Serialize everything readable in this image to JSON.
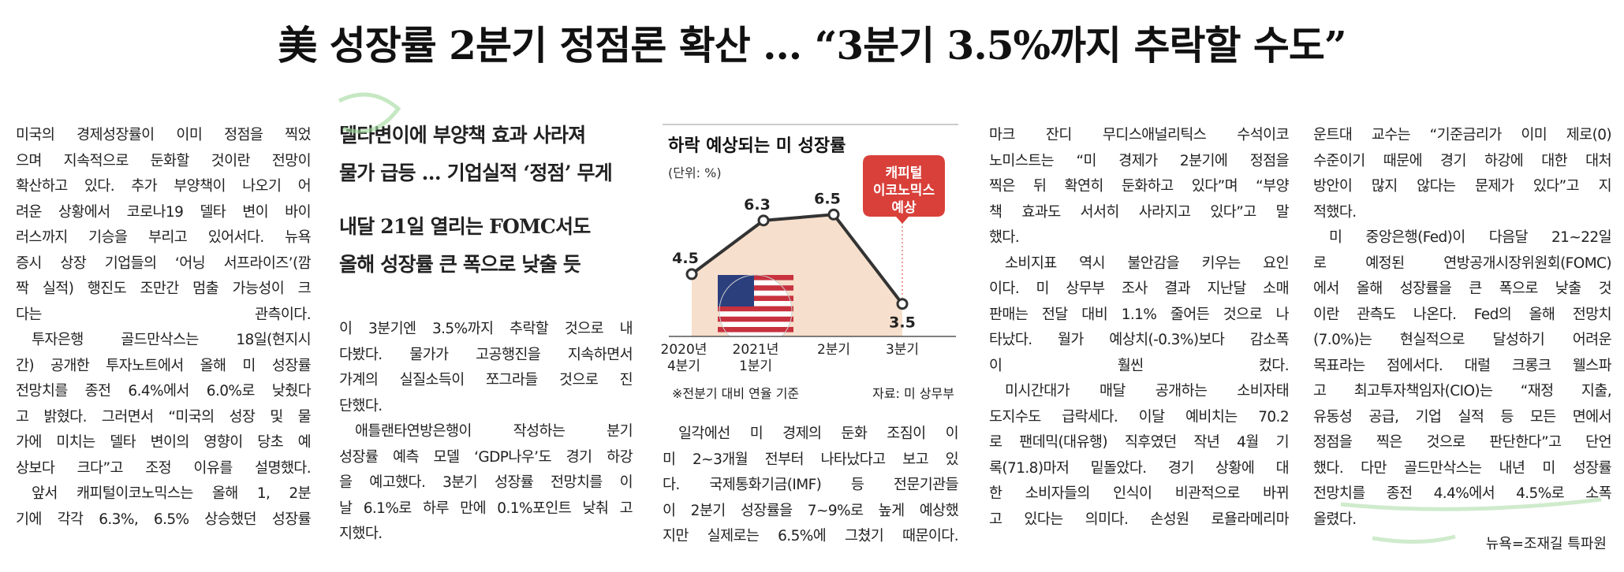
{
  "title": "美 성장률 2분기 정점론 확산 … “3분기 3.5%까지 추락할 수도”",
  "subheads": [
    [
      "델타변이에 부양책 효과 사라져",
      "물가 급등 … 기업실적 ‘정점’ 무게"
    ],
    [
      "내달 21일 열리는 FOMC서도",
      "올해 성장률 큰 폭으로 낮출 듯"
    ]
  ],
  "columns": [
    {
      "paragraphs": [
        [
          "미국의 경제성장률이 이미 정점을 찍었",
          "으며 지속적으로 둔화할 것이란 전망이",
          "확산하고 있다. 추가 부양책이 나오기 어",
          "려운 상황에서 코로나19 델타 변이 바이",
          "러스까지 기승을 부리고 있어서다. 뉴욕",
          "증시 상장 기업들의 ‘어닝 서프라이즈’(깜",
          "짝 실적) 행진도 조만간 멈출 가능성이 크",
          "다는 관측이다."
        ],
        [
          "투자은행 골드만삭스는 18일(현지시",
          "간) 공개한 투자노트에서 올해 미 성장률",
          "전망치를 종전 6.4%에서 6.0%로 낮췄다",
          "고 밝혔다. 그러면서 “미국의 성장 및 물",
          "가에 미치는 델타 변이의 영향이 당초 예",
          "상보다 크다”고 조정 이유를 설명했다."
        ],
        [
          "앞서 캐피털이코노믹스는 올해 1, 2분",
          "기에 각각 6.3%, 6.5% 상승했던 성장률"
        ]
      ]
    },
    {
      "paragraphs": [
        [
          "이 3분기엔 3.5%까지 추락할 것으로 내",
          "다봤다. 물가가 고공행진을 지속하면서",
          "가계의 실질소득이 쪼그라들 것으로 진",
          "단했다."
        ],
        [
          "애틀랜타연방은행이 작성하는 분기",
          "성장률 예측 모델 ‘GDP나우’도 경기 하강",
          "을 예고했다. 3분기 성장률 전망치를 이",
          "날 6.1%로 하루 만에 0.1%포인트 낮춰 고",
          "지했다."
        ]
      ]
    },
    {
      "paragraphs": [
        [
          "일각에선 미 경제의 둔화 조짐이 이",
          "미 2~3개월 전부터 나타났다고 보고 있",
          "다. 국제통화기금(IMF) 등 전문기관들",
          "이 2분기 성장률을 7~9%로 높게 예상했",
          "지만 실제로는 6.5%에 그쳤기 때문이다."
        ]
      ]
    },
    {
      "paragraphs": [
        [
          "마크 잔디 무디스애널리틱스 수석이코",
          "노미스트는 “미 경제가 2분기에 정점을",
          "찍은 뒤 확연히 둔화하고 있다”며 “부양",
          "책 효과도 서서히 사라지고 있다”고 말",
          "했다."
        ],
        [
          "소비지표 역시 불안감을 키우는 요인",
          "이다. 미 상무부 조사 결과 지난달 소매",
          "판매는 전달 대비 1.1% 줄어든 것으로 나",
          "타났다. 월가 예상치(-0.3%)보다 감소폭",
          "이 훨씬 컸다."
        ],
        [
          "미시간대가 매달 공개하는 소비자태",
          "도지수도 급락세다. 이달 예비치는 70.2",
          "로 팬데믹(대유행) 직후였던 작년 4월 기",
          "록(71.8)마저 밑돌았다. 경기 상황에 대",
          "한 소비자들의 인식이 비관적으로 바뀌",
          "고 있다는 의미다. 손성원 로욜라메리마"
        ]
      ]
    },
    {
      "paragraphs": [
        [
          "운트대 교수는 “기준금리가 이미 제로(0)",
          "수준이기 때문에 경기 하강에 대한 대처",
          "방안이 많지 않다는 문제가 있다”고 지",
          "적했다."
        ],
        [
          "미 중앙은행(Fed)이 다음달 21~22일",
          "로 예정된 연방공개시장위원회(FOMC)",
          "에서 올해 성장률을 큰 폭으로 낮출 것",
          "이란 관측도 나온다. Fed의 올해 전망치",
          "(7.0%)는 현실적으로 달성하기 어려운",
          "목표라는 점에서다. 대럴 크롱크 웰스파",
          "고 최고투자책임자(CIO)는 “재정 지출,",
          "유동성 공급, 기업 실적 등 모든 면에서",
          "정점을 찍은 것으로 판단한다”고 단언",
          "했다. 다만 골드만삭스는 내년 미 성장률",
          "전망치를 종전 4.4%에서 4.5%로 소폭",
          "올렸다."
        ]
      ]
    }
  ],
  "byline": "뉴욕=조재길 특파원",
  "chart_data": {
    "type": "line",
    "title": "하락 예상되는 미 성장률",
    "unit": "(단위: %)",
    "categories": [
      [
        "2020년",
        "4분기"
      ],
      [
        "2021년",
        "1분기"
      ],
      [
        "2분기"
      ],
      [
        "3분기"
      ]
    ],
    "values": [
      4.5,
      6.3,
      6.5,
      3.5
    ],
    "color": "#333333",
    "area_color": "#f6dfcc",
    "annotation": [
      "캐피털",
      "이코노믹스",
      "예상"
    ],
    "note": "※전분기 대비 연율 기준",
    "source": "자료: 미 상무부"
  }
}
